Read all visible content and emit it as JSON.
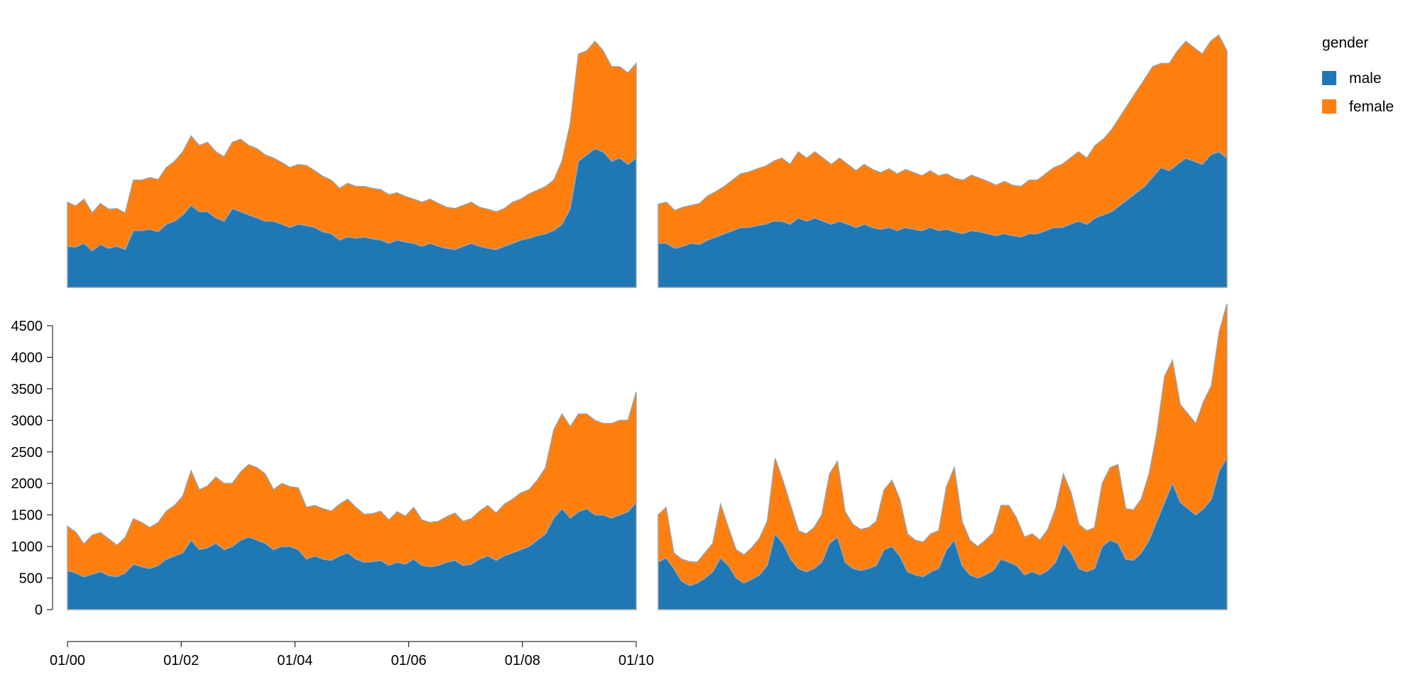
{
  "legend": {
    "title": "gender",
    "items": [
      {
        "label": "male",
        "color": "#1f77b4"
      },
      {
        "label": "female",
        "color": "#ff7f0e"
      }
    ]
  },
  "chart_data": [
    {
      "type": "area",
      "stacked": true,
      "panel": "top-left",
      "series_colors": {
        "male": "#1f77b4",
        "female": "#ff7f0e"
      },
      "x_range": [
        "2000-01",
        "2010-01"
      ],
      "ylim": [
        0,
        4500
      ],
      "male": [
        650,
        640,
        700,
        580,
        680,
        620,
        650,
        600,
        900,
        900,
        920,
        880,
        1000,
        1050,
        1150,
        1300,
        1200,
        1200,
        1100,
        1050,
        1250,
        1200,
        1150,
        1100,
        1050,
        1050,
        1000,
        950,
        1000,
        980,
        950,
        880,
        850,
        750,
        800,
        780,
        800,
        770,
        750,
        700,
        750,
        720,
        700,
        650,
        700,
        650,
        620,
        600,
        650,
        700,
        650,
        620,
        600,
        650,
        700,
        750,
        780,
        820,
        850,
        900,
        1000,
        1250,
        2000,
        2100,
        2200,
        2150,
        2000,
        2050,
        1950,
        2050
      ],
      "female": [
        700,
        650,
        700,
        600,
        650,
        620,
        600,
        580,
        800,
        800,
        820,
        830,
        900,
        950,
        1000,
        1100,
        1050,
        1100,
        1050,
        1020,
        1050,
        1150,
        1100,
        1100,
        1050,
        1000,
        980,
        950,
        950,
        950,
        900,
        880,
        850,
        820,
        850,
        820,
        800,
        800,
        800,
        770,
        750,
        720,
        700,
        700,
        700,
        680,
        650,
        650,
        650,
        650,
        620,
        620,
        600,
        600,
        650,
        650,
        700,
        720,
        750,
        800,
        1000,
        1350,
        1700,
        1650,
        1700,
        1600,
        1500,
        1450,
        1450,
        1500
      ]
    },
    {
      "type": "area",
      "stacked": true,
      "panel": "top-right",
      "series_colors": {
        "male": "#1f77b4",
        "female": "#ff7f0e"
      },
      "x_range": [
        "2000-01",
        "2010-01"
      ],
      "ylim": [
        0,
        4500
      ],
      "male": [
        700,
        700,
        620,
        650,
        700,
        680,
        750,
        800,
        850,
        900,
        950,
        950,
        980,
        1000,
        1050,
        1050,
        1000,
        1100,
        1050,
        1100,
        1050,
        1000,
        1050,
        1000,
        950,
        1000,
        950,
        920,
        950,
        900,
        950,
        920,
        900,
        950,
        900,
        920,
        880,
        850,
        900,
        880,
        850,
        820,
        850,
        820,
        800,
        850,
        850,
        900,
        950,
        950,
        1000,
        1050,
        1000,
        1100,
        1150,
        1200,
        1300,
        1400,
        1500,
        1600,
        1750,
        1900,
        1850,
        1950,
        2050,
        2000,
        1950,
        2100,
        2150,
        2050
      ],
      "female": [
        620,
        650,
        600,
        620,
        600,
        650,
        700,
        720,
        750,
        800,
        850,
        880,
        900,
        920,
        950,
        1000,
        950,
        1050,
        1000,
        1050,
        1000,
        950,
        1000,
        950,
        900,
        950,
        920,
        900,
        930,
        900,
        920,
        900,
        870,
        900,
        870,
        880,
        850,
        850,
        880,
        850,
        830,
        800,
        830,
        800,
        800,
        850,
        850,
        900,
        950,
        1000,
        1050,
        1100,
        1050,
        1150,
        1200,
        1300,
        1400,
        1500,
        1600,
        1700,
        1750,
        1650,
        1700,
        1800,
        1850,
        1800,
        1750,
        1800,
        1850,
        1700
      ]
    },
    {
      "type": "area",
      "stacked": true,
      "panel": "bottom-left",
      "series_colors": {
        "male": "#1f77b4",
        "female": "#ff7f0e"
      },
      "x_range": [
        "2000-01",
        "2010-01"
      ],
      "xticks": [
        "01/00",
        "01/02",
        "01/04",
        "01/06",
        "01/08",
        "01/10"
      ],
      "ylim": [
        0,
        4500
      ],
      "yticks": [
        0,
        500,
        1000,
        1500,
        2000,
        2500,
        3000,
        3500,
        4000,
        4500
      ],
      "male": [
        620,
        580,
        520,
        560,
        600,
        540,
        520,
        580,
        720,
        680,
        650,
        700,
        800,
        850,
        900,
        1100,
        950,
        980,
        1050,
        950,
        1000,
        1100,
        1150,
        1100,
        1050,
        950,
        1000,
        1000,
        950,
        800,
        850,
        800,
        780,
        850,
        900,
        800,
        750,
        760,
        780,
        700,
        750,
        720,
        800,
        700,
        680,
        700,
        750,
        780,
        700,
        720,
        800,
        850,
        780,
        850,
        900,
        950,
        1000,
        1100,
        1200,
        1450,
        1600,
        1450,
        1550,
        1600,
        1500,
        1500,
        1450,
        1500,
        1550,
        1700
      ],
      "female": [
        700,
        650,
        520,
        620,
        620,
        580,
        500,
        560,
        720,
        700,
        650,
        680,
        760,
        800,
        900,
        1100,
        950,
        980,
        1050,
        1050,
        1000,
        1080,
        1150,
        1150,
        1100,
        950,
        1000,
        950,
        980,
        820,
        800,
        800,
        780,
        820,
        850,
        820,
        760,
        760,
        780,
        720,
        800,
        760,
        820,
        720,
        700,
        700,
        720,
        750,
        700,
        720,
        760,
        800,
        750,
        820,
        850,
        900,
        900,
        950,
        1050,
        1400,
        1500,
        1450,
        1550,
        1500,
        1500,
        1450,
        1500,
        1500,
        1450,
        1750
      ]
    },
    {
      "type": "area",
      "stacked": true,
      "panel": "bottom-right",
      "series_colors": {
        "male": "#1f77b4",
        "female": "#ff7f0e"
      },
      "x_range": [
        "2000-01",
        "2010-01"
      ],
      "ylim": [
        0,
        4500
      ],
      "male": [
        750,
        820,
        650,
        450,
        380,
        420,
        500,
        600,
        820,
        700,
        500,
        420,
        480,
        550,
        700,
        1200,
        1050,
        800,
        650,
        600,
        650,
        750,
        1050,
        1150,
        750,
        650,
        620,
        650,
        700,
        950,
        1000,
        850,
        600,
        550,
        520,
        600,
        650,
        950,
        1100,
        700,
        550,
        500,
        550,
        620,
        800,
        750,
        700,
        550,
        600,
        550,
        620,
        750,
        1050,
        900,
        650,
        600,
        650,
        1000,
        1100,
        1050,
        800,
        780,
        900,
        1100,
        1400,
        1700,
        2000,
        1700,
        1600,
        1500,
        1600,
        1750,
        2200,
        2400
      ],
      "female": [
        750,
        800,
        250,
        350,
        380,
        330,
        400,
        450,
        850,
        600,
        450,
        450,
        500,
        580,
        700,
        1200,
        1000,
        850,
        600,
        600,
        650,
        750,
        1100,
        1200,
        800,
        700,
        650,
        650,
        700,
        950,
        1050,
        900,
        600,
        550,
        550,
        600,
        600,
        1000,
        1150,
        700,
        550,
        500,
        550,
        600,
        850,
        900,
        750,
        600,
        600,
        550,
        650,
        850,
        1100,
        950,
        700,
        650,
        650,
        1000,
        1150,
        1250,
        800,
        800,
        850,
        1050,
        1400,
        2000,
        1950,
        1550,
        1500,
        1450,
        1700,
        1800,
        2200,
        2450
      ]
    }
  ]
}
